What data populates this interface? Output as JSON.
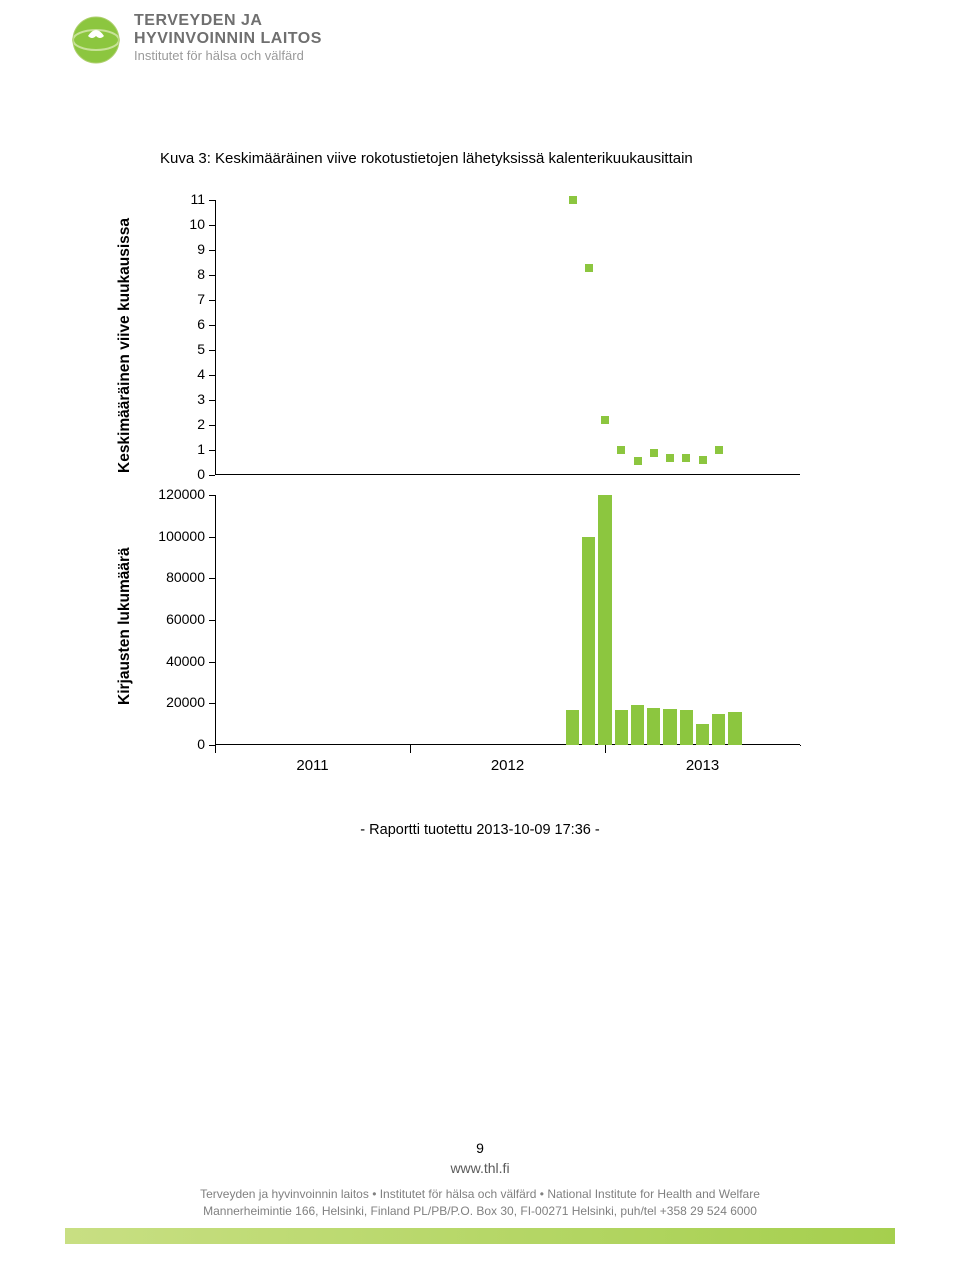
{
  "header": {
    "org_line1": "TERVEYDEN JA",
    "org_line2": "HYVINVOINNIN LAITOS",
    "org_line3": "Institutet för hälsa och välfärd"
  },
  "chart": {
    "title": "Kuva 3: Keskimääräinen viive rokotustietojen lähetyksissä kalenterikuukausittain",
    "top_panel": {
      "ylabel": "Keskimääräinen viive kuukausissa",
      "type": "scatter",
      "ylim": [
        0,
        11
      ],
      "yticks": [
        0,
        1,
        2,
        3,
        4,
        5,
        6,
        7,
        8,
        9,
        10,
        11
      ],
      "point_color": "#8cc63f",
      "points": [
        {
          "x": 22,
          "y": 11
        },
        {
          "x": 23,
          "y": 8.3
        },
        {
          "x": 24,
          "y": 2.2
        },
        {
          "x": 25,
          "y": 1.0
        },
        {
          "x": 26,
          "y": 0.55
        },
        {
          "x": 27,
          "y": 0.9
        },
        {
          "x": 28,
          "y": 0.7
        },
        {
          "x": 29,
          "y": 0.7
        },
        {
          "x": 30,
          "y": 0.6
        },
        {
          "x": 31,
          "y": 1.0
        }
      ]
    },
    "bottom_panel": {
      "ylabel": "Kirjausten lukumäärä",
      "type": "bar",
      "ylim": [
        0,
        120000
      ],
      "yticks": [
        0,
        20000,
        40000,
        60000,
        80000,
        100000,
        120000
      ],
      "bar_color": "#8cc63f",
      "bars": [
        {
          "x": 22,
          "y": 17000
        },
        {
          "x": 23,
          "y": 100000
        },
        {
          "x": 24,
          "y": 120000
        },
        {
          "x": 25,
          "y": 17000
        },
        {
          "x": 26,
          "y": 19000
        },
        {
          "x": 27,
          "y": 18000
        },
        {
          "x": 28,
          "y": 17500
        },
        {
          "x": 29,
          "y": 17000
        },
        {
          "x": 30,
          "y": 10000
        },
        {
          "x": 31,
          "y": 15000
        },
        {
          "x": 32,
          "y": 16000
        }
      ]
    },
    "x_axis": {
      "range": [
        0,
        36
      ],
      "major_ticks": [
        0,
        12,
        24
      ],
      "labels": [
        {
          "pos": 6,
          "text": "2011"
        },
        {
          "pos": 18,
          "text": "2012"
        },
        {
          "pos": 30,
          "text": "2013"
        }
      ]
    }
  },
  "report_line": "- Raportti tuotettu 2013-10-09 17:36 -",
  "page_number": "9",
  "footer": {
    "url": "www.thl.fi",
    "line1": "Terveyden ja hyvinvoinnin laitos • Institutet för hälsa och välfärd • National Institute for Health and Welfare",
    "line2": "Mannerheimintie 166, Helsinki, Finland PL/PB/P.O. Box 30, FI-00271 Helsinki, puh/tel +358 29 524 6000",
    "bar_gradient": [
      "#c8df83",
      "#a5cf4e"
    ]
  },
  "colors": {
    "accent": "#8cc63f",
    "text": "#000000",
    "muted": "#808080"
  }
}
